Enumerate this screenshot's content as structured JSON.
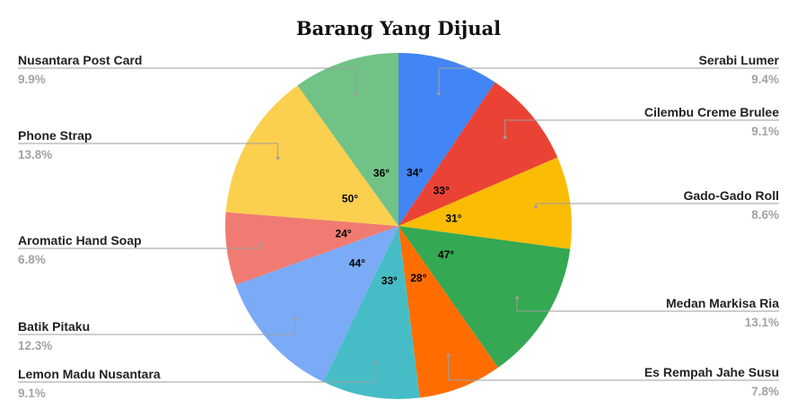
{
  "chart_data": {
    "type": "pie",
    "title": "Barang Yang Dijual",
    "slices": [
      {
        "label": "Serabi Lumer",
        "percent_label": "9.4%",
        "value": 9.4,
        "angle_label": "34°",
        "color": "#4285f4"
      },
      {
        "label": "Cilembu Creme Brulee",
        "percent_label": "9.1%",
        "value": 9.1,
        "angle_label": "33°",
        "color": "#ea4335"
      },
      {
        "label": "Gado-Gado Roll",
        "percent_label": "8.6%",
        "value": 8.6,
        "angle_label": "31°",
        "color": "#fbbc04"
      },
      {
        "label": "Medan Markisa Ria",
        "percent_label": "13.1%",
        "value": 13.1,
        "angle_label": "47°",
        "color": "#34a853"
      },
      {
        "label": "Es Rempah Jahe Susu",
        "percent_label": "7.8%",
        "value": 7.8,
        "angle_label": "28°",
        "color": "#ff6d01"
      },
      {
        "label": "Lemon Madu Nusantara",
        "percent_label": "9.1%",
        "value": 9.1,
        "angle_label": "33°",
        "color": "#46bdc6"
      },
      {
        "label": "Batik Pitaku",
        "percent_label": "12.3%",
        "value": 12.3,
        "angle_label": "44°",
        "color": "#7baaf7"
      },
      {
        "label": "Aromatic Hand Soap",
        "percent_label": "6.8%",
        "value": 6.8,
        "angle_label": "24°",
        "color": "#f07b72"
      },
      {
        "label": "Phone Strap",
        "percent_label": "13.8%",
        "value": 13.8,
        "angle_label": "50°",
        "color": "#fcd04f"
      },
      {
        "label": "Nusantara Post Card",
        "percent_label": "9.9%",
        "value": 9.9,
        "angle_label": "36°",
        "color": "#71c287"
      }
    ]
  }
}
